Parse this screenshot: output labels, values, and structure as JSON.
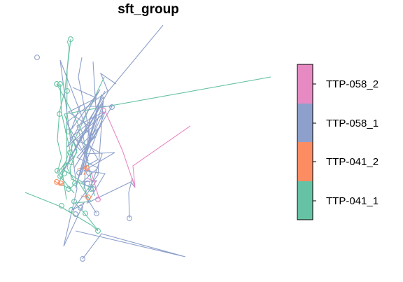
{
  "chart_data": {
    "type": "line",
    "title": "sft_group",
    "xlabel": "",
    "ylabel": "",
    "axes_visible": false,
    "grid": false,
    "legend_position": "right",
    "legend_style": "color-bar",
    "series": [
      {
        "name": "TTP-041_1",
        "color": "#66C2A5",
        "lines": [
          [
            [
              101,
              56
            ],
            [
              96,
              100
            ],
            [
              95,
              230
            ],
            [
              88,
              240
            ],
            [
              92,
              265
            ],
            [
              95,
              285
            ]
          ],
          [
            [
              96,
              58
            ],
            [
              99,
              68
            ],
            [
              93,
              128
            ],
            [
              85,
              160
            ],
            [
              82,
              200
            ],
            [
              88,
              225
            ],
            [
              82,
              246
            ],
            [
              96,
              232
            ],
            [
              84,
              262
            ],
            [
              100,
              270
            ],
            [
              111,
              258
            ],
            [
              130,
              288
            ],
            [
              107,
              290
            ],
            [
              121,
              305
            ],
            [
              140,
              329
            ]
          ],
          [
            [
              387,
              110
            ],
            [
              92,
              163
            ],
            [
              110,
              215
            ],
            [
              100,
              240
            ],
            [
              102,
              256
            ],
            [
              130,
              268
            ]
          ],
          [
            [
              36,
              275
            ],
            [
              86,
              295
            ],
            [
              131,
              322
            ],
            [
              140,
              330
            ]
          ],
          [
            [
              81,
              120
            ],
            [
              94,
              143
            ],
            [
              118,
              190
            ],
            [
              130,
              255
            ],
            [
              135,
              280
            ]
          ],
          [
            [
              149,
              110
            ],
            [
              104,
              205
            ],
            [
              96,
              240
            ],
            [
              106,
              258
            ]
          ],
          [
            [
              86,
              120
            ],
            [
              88,
              162
            ],
            [
              100,
              214
            ],
            [
              90,
              242
            ],
            [
              120,
              262
            ],
            [
              126,
              290
            ]
          ],
          [
            [
              98,
              180
            ],
            [
              110,
              218
            ],
            [
              84,
              250
            ],
            [
              106,
              276
            ]
          ]
        ],
        "markers": [
          [
            101,
            56
          ],
          [
            81,
            120
          ],
          [
            86,
            120
          ],
          [
            96,
            130
          ],
          [
            85,
            163
          ],
          [
            97,
            188
          ],
          [
            100,
            218
          ],
          [
            102,
            232
          ],
          [
            82,
            244
          ],
          [
            86,
            252
          ],
          [
            92,
            248
          ],
          [
            107,
            262
          ],
          [
            98,
            270
          ],
          [
            106,
            288
          ],
          [
            88,
            294
          ],
          [
            140,
            330
          ],
          [
            102,
            300
          ],
          [
            122,
            305
          ],
          [
            130,
            270
          ]
        ]
      },
      {
        "name": "TTP-041_2",
        "color": "#FC8D62",
        "lines": [
          [
            [
              78,
              258
            ],
            [
              82,
              262
            ],
            [
              86,
              258
            ],
            [
              84,
              264
            ],
            [
              90,
              262
            ]
          ],
          [
            [
              110,
              242
            ],
            [
              124,
              238
            ],
            [
              120,
              250
            ]
          ],
          [
            [
              116,
              280
            ],
            [
              126,
              282
            ]
          ]
        ],
        "markers": [
          [
            81,
            260
          ],
          [
            87,
            262
          ],
          [
            124,
            240
          ],
          [
            126,
            282
          ]
        ]
      },
      {
        "name": "TTP-058_1",
        "color": "#8DA0CB",
        "lines": [
          [
            [
              233,
              36
            ],
            [
              155,
              130
            ],
            [
              112,
              205
            ],
            [
              88,
              250
            ],
            [
              150,
              130
            ],
            [
              98,
              230
            ],
            [
              148,
              145
            ],
            [
              108,
              268
            ],
            [
              145,
              135
            ],
            [
              116,
              250
            ],
            [
              150,
              160
            ],
            [
              96,
              210
            ],
            [
              143,
              128
            ],
            [
              102,
              185
            ],
            [
              115,
              150
            ]
          ],
          [
            [
              117,
              82
            ],
            [
              112,
              110
            ],
            [
              130,
              200
            ],
            [
              86,
              86
            ],
            [
              110,
              270
            ],
            [
              91,
              352
            ],
            [
              120,
              290
            ],
            [
              104,
              300
            ],
            [
              140,
              250
            ],
            [
              148,
              138
            ],
            [
              128,
              170
            ],
            [
              120,
              270
            ]
          ],
          [
            [
              166,
              120
            ],
            [
              144,
              105
            ],
            [
              154,
              130
            ],
            [
              95,
              175
            ],
            [
              126,
              230
            ],
            [
              110,
              180
            ],
            [
              148,
              160
            ],
            [
              127,
              205
            ],
            [
              140,
              228
            ],
            [
              115,
              242
            ],
            [
              134,
              180
            ],
            [
              110,
              200
            ],
            [
              146,
              220
            ],
            [
              128,
              272
            ]
          ],
          [
            [
              133,
              88
            ],
            [
              138,
              170
            ],
            [
              120,
              220
            ],
            [
              164,
              218
            ],
            [
              120,
              244
            ],
            [
              150,
              248
            ],
            [
              125,
              290
            ],
            [
              187,
              260
            ],
            [
              193,
              268
            ],
            [
              189,
              255
            ],
            [
              184,
              275
            ],
            [
              185,
              312
            ]
          ],
          [
            [
              125,
              152
            ],
            [
              160,
              152
            ],
            [
              106,
              240
            ],
            [
              144,
              180
            ],
            [
              118,
              205
            ]
          ],
          [
            [
              108,
              330
            ],
            [
              265,
              367
            ],
            [
              145,
              334
            ],
            [
              118,
              370
            ]
          ],
          [
            [
              104,
              125
            ],
            [
              138,
              140
            ],
            [
              98,
              160
            ],
            [
              124,
              178
            ],
            [
              100,
              198
            ],
            [
              115,
              215
            ],
            [
              136,
              195
            ],
            [
              110,
              225
            ],
            [
              140,
              240
            ],
            [
              118,
              260
            ],
            [
              138,
              258
            ],
            [
              122,
              280
            ],
            [
              138,
              305
            ]
          ]
        ],
        "markers": [
          [
            53,
            82
          ],
          [
            160,
            153
          ],
          [
            113,
            247
          ],
          [
            133,
            270
          ],
          [
            115,
            297
          ],
          [
            138,
            305
          ],
          [
            108,
            306
          ],
          [
            185,
            312
          ],
          [
            118,
            370
          ],
          [
            125,
            262
          ],
          [
            127,
            247
          ]
        ]
      },
      {
        "name": "TTP-058_2",
        "color": "#E78AC3",
        "lines": [
          [
            [
              150,
              158
            ],
            [
              175,
              215
            ],
            [
              193,
              268
            ],
            [
              190,
              237
            ],
            [
              272,
              180
            ]
          ],
          [
            [
              120,
              240
            ],
            [
              130,
              245
            ],
            [
              142,
              285
            ]
          ],
          [
            [
              125,
              255
            ],
            [
              138,
              260
            ]
          ]
        ],
        "markers": [
          [
            148,
            158
          ],
          [
            140,
            285
          ]
        ]
      }
    ],
    "legend": [
      "TTP-058_2",
      "TTP-058_1",
      "TTP-041_2",
      "TTP-041_1"
    ]
  }
}
